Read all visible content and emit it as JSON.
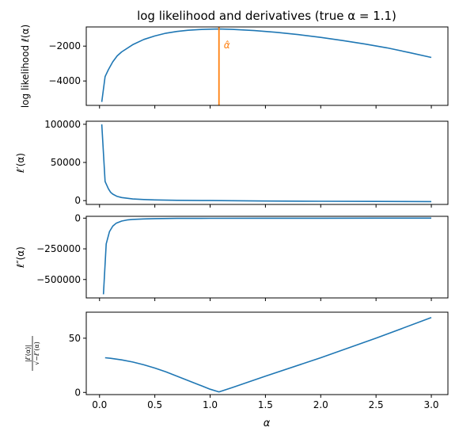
{
  "chart_data": {
    "type": "line",
    "title": "log likelihood and derivatives (true α = 1.1)",
    "xlabel": "α",
    "shared_x_ticks": [
      "0.0",
      "0.5",
      "1.0",
      "1.5",
      "2.0",
      "2.5",
      "3.0"
    ],
    "shared_x_tick_values": [
      0.0,
      0.5,
      1.0,
      1.5,
      2.0,
      2.5,
      3.0
    ],
    "xlim": [
      -0.12,
      3.15
    ],
    "line_color": "#1f77b4",
    "accent_color": "#ff7f0e",
    "panels": [
      {
        "ylabel": "log likelihood ℓ(α)",
        "ylim": [
          -5400,
          -900
        ],
        "yticks": [
          -2000,
          -4000
        ],
        "ytick_labels": [
          "−2000",
          "−4000"
        ],
        "vline": {
          "x": 1.08,
          "label": "α̂"
        },
        "series": [
          {
            "x": [
              0.02,
              0.05,
              0.08,
              0.12,
              0.16,
              0.2,
              0.3,
              0.4,
              0.5,
              0.6,
              0.7,
              0.8,
              0.9,
              1.0,
              1.08,
              1.2,
              1.4,
              1.6,
              1.8,
              2.0,
              2.2,
              2.4,
              2.6,
              2.8,
              3.0
            ],
            "y": [
              -5200,
              -3750,
              -3350,
              -2900,
              -2560,
              -2330,
              -1920,
              -1620,
              -1420,
              -1260,
              -1160,
              -1090,
              -1050,
              -1025,
              -1020,
              -1040,
              -1110,
              -1210,
              -1340,
              -1500,
              -1680,
              -1880,
              -2100,
              -2370,
              -2650
            ]
          }
        ]
      },
      {
        "ylabel": "ℓ′(α)",
        "ylim": [
          -5000,
          104000
        ],
        "yticks": [
          100000,
          50000,
          0
        ],
        "ytick_labels": [
          "100000",
          "50000",
          "0"
        ],
        "series": [
          {
            "x": [
              0.02,
              0.05,
              0.08,
              0.1,
              0.12,
              0.16,
              0.2,
              0.3,
              0.4,
              0.5,
              0.7,
              1.0,
              1.5,
              2.0,
              2.5,
              3.0
            ],
            "y": [
              100000,
              25000,
              15500,
              11000,
              8500,
              5500,
              4000,
              2200,
              1400,
              900,
              450,
              50,
              -550,
              -850,
              -1050,
              -1250
            ]
          }
        ]
      },
      {
        "ylabel": "ℓ″(α)",
        "ylim": [
          -650000,
          15000
        ],
        "yticks": [
          0,
          -250000,
          -500000
        ],
        "ytick_labels": [
          "0",
          "−250000",
          "−500000"
        ],
        "series": [
          {
            "x": [
              0.035,
              0.06,
              0.09,
              0.12,
              0.15,
              0.2,
              0.25,
              0.3,
              0.4,
              0.5,
              0.7,
              1.0,
              1.5,
              2.0,
              2.5,
              3.0
            ],
            "y": [
              -620000,
              -210000,
              -110000,
              -65000,
              -42000,
              -24000,
              -15000,
              -10500,
              -6000,
              -3800,
              -2000,
              -1000,
              -500,
              -260,
              -170,
              -110
            ]
          }
        ]
      },
      {
        "ylabel": "|ℓ′(α)| / √−ℓ″(α)",
        "ylabel_numerator": "|ℓ′(α)|",
        "ylabel_denominator": "√−ℓ″(α)",
        "ylim": [
          -2,
          74
        ],
        "yticks": [
          50,
          0
        ],
        "ytick_labels": [
          "50",
          "0"
        ],
        "series": [
          {
            "x": [
              0.05,
              0.1,
              0.2,
              0.3,
              0.4,
              0.5,
              0.6,
              0.7,
              0.8,
              0.9,
              1.0,
              1.08,
              1.2,
              1.5,
              2.0,
              2.5,
              3.0
            ],
            "y": [
              32,
              31.5,
              30,
              28,
              25.5,
              22.5,
              19,
              15,
              11,
              7,
              3,
              0.5,
              4.5,
              15,
              32,
              50,
              69
            ]
          }
        ]
      }
    ]
  }
}
